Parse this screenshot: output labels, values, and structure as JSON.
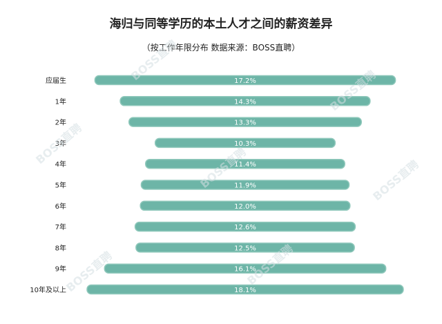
{
  "title": "海归与同等学历的本土人才之间的薪资差异",
  "subtitle": "（按工作年限分布  数据来源：BOSS直聘）",
  "watermark": "BOSS直聘",
  "colors": {
    "bar": "#6db5a7",
    "bar_edge": "#8fc8bb",
    "label": "#ffffff",
    "category": "#222222"
  },
  "chart_data": {
    "type": "bar",
    "orientation": "horizontal",
    "title": "海归与同等学历的本土人才之间的薪资差异",
    "subtitle": "（按工作年限分布  数据来源：BOSS直聘）",
    "categories": [
      "应届生",
      "1年",
      "2年",
      "3年",
      "4年",
      "5年",
      "6年",
      "7年",
      "8年",
      "9年",
      "10年及以上"
    ],
    "values": [
      17.2,
      14.3,
      13.3,
      10.3,
      11.4,
      11.9,
      12.0,
      12.6,
      12.5,
      16.1,
      18.1
    ],
    "value_labels": [
      "17.2%",
      "14.3%",
      "13.3%",
      "10.3%",
      "11.4%",
      "11.9%",
      "12.0%",
      "12.6%",
      "12.5%",
      "16.1%",
      "18.1%"
    ],
    "bar_alignment": "centered",
    "unit": "%",
    "grid": false,
    "legend": "none"
  }
}
